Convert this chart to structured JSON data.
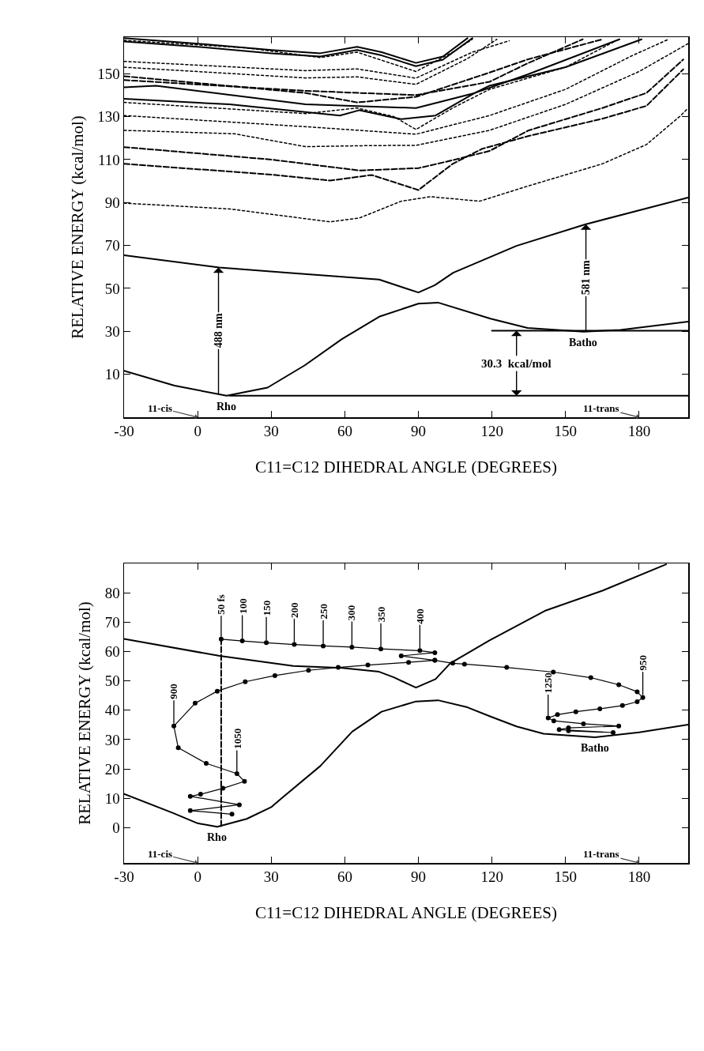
{
  "chart_data": [
    {
      "type": "line",
      "xlabel": "C11=C12 DIHEDRAL ANGLE (DEGREES)",
      "ylabel": "RELATIVE ENERGY (kcal/mol)",
      "xlim": [
        -30,
        200
      ],
      "ylim": [
        -10,
        167
      ],
      "xticks": [
        -30,
        0,
        30,
        60,
        90,
        120,
        150,
        180
      ],
      "yticks": [
        10,
        30,
        50,
        70,
        90,
        110,
        130,
        150
      ],
      "series": [
        {
          "x": [
            -30,
            -9.4,
            11.8,
            28.5,
            43.7,
            58.8,
            74,
            90,
            98,
            119.4,
            134.5,
            157.3,
            172.4,
            200
          ],
          "values": [
            11.6,
            4.7,
            0,
            3.8,
            14.2,
            26.4,
            36.8,
            42.9,
            43.4,
            35.9,
            31.6,
            29.8,
            30.7,
            34.5
          ],
          "color": "#000000",
          "line_style": "solid"
        },
        {
          "x": [
            -30,
            8.8,
            36,
            74,
            83,
            90,
            96.7,
            104.2,
            130,
            158,
            200
          ],
          "values": [
            65.4,
            59.7,
            57.3,
            54.1,
            50.7,
            48.1,
            51.5,
            57.3,
            69.8,
            79.8,
            92.3
          ],
          "color": "#000000",
          "line_style": "solid"
        },
        {
          "x": [
            -30,
            13,
            54,
            66,
            83,
            95,
            115,
            134.5,
            165,
            183,
            197,
            200
          ],
          "values": [
            89.7,
            87,
            81,
            82.8,
            90.6,
            92.7,
            90.6,
            97.6,
            108,
            117,
            130.5,
            134
          ],
          "color": "#000000",
          "line_style": "dotted"
        },
        {
          "x": [
            -30,
            30,
            66,
            90,
            104,
            119,
            135,
            165,
            183,
            198
          ],
          "values": [
            115.8,
            110,
            104.9,
            106,
            109.7,
            114,
            123.6,
            134,
            141,
            156.6
          ],
          "color": "#000000",
          "line_style": "dashed"
        },
        {
          "x": [
            -30,
            30,
            54,
            71,
            90,
            104,
            116,
            135,
            165,
            183,
            198
          ],
          "values": [
            108,
            103,
            100.2,
            102.8,
            95.8,
            108,
            115,
            121,
            129,
            135,
            152
          ],
          "color": "#000000",
          "line_style": "dashed"
        },
        {
          "x": [
            -30,
            15,
            44,
            70,
            89,
            119,
            150,
            180,
            200
          ],
          "values": [
            123.6,
            122,
            116,
            116.5,
            116.6,
            123.6,
            135.7,
            151,
            164
          ],
          "color": "#000000",
          "line_style": "dotted"
        },
        {
          "x": [
            -30,
            44,
            89,
            119,
            150,
            177,
            192
          ],
          "values": [
            130.5,
            125.3,
            121.8,
            130.5,
            142.7,
            158.3,
            166
          ],
          "color": "#000000",
          "line_style": "dotted"
        },
        {
          "x": [
            -30,
            44,
            65,
            80,
            89,
            104,
            119,
            150,
            170
          ],
          "values": [
            136.6,
            131.4,
            134,
            130,
            124,
            134,
            142.7,
            153,
            165
          ],
          "color": "#000000",
          "line_style": "dotted"
        },
        {
          "x": [
            -30,
            13,
            58,
            66,
            83,
            97,
            113,
            134.5,
            172
          ],
          "values": [
            138.3,
            135.7,
            130.5,
            133,
            128.8,
            130.5,
            141,
            149.6,
            166
          ],
          "color": "#000000",
          "line_style": "solid"
        },
        {
          "x": [
            -30,
            -17,
            44,
            89,
            113,
            119,
            150,
            181
          ],
          "values": [
            143.6,
            144.4,
            135.7,
            134,
            141,
            144.4,
            153,
            166
          ],
          "color": "#000000",
          "line_style": "solid"
        },
        {
          "x": [
            -30,
            44,
            65,
            89,
            119,
            134.5,
            165
          ],
          "values": [
            148.8,
            141,
            136.6,
            139.2,
            150.5,
            156.6,
            166
          ],
          "color": "#000000",
          "line_style": "dashed"
        },
        {
          "x": [
            -30,
            44,
            89,
            119,
            134.5,
            157
          ],
          "values": [
            147,
            142,
            140,
            146.2,
            154.8,
            166
          ],
          "color": "#000000",
          "line_style": "dashed"
        },
        {
          "x": [
            -30,
            44,
            65,
            89,
            112,
            127
          ],
          "values": [
            155.7,
            151.4,
            152.2,
            147.9,
            160,
            165.3
          ],
          "color": "#000000",
          "line_style": "dotted"
        },
        {
          "x": [
            -30,
            44,
            65,
            89,
            110,
            122
          ],
          "values": [
            153,
            148,
            148.5,
            145,
            157,
            166
          ],
          "color": "#000000",
          "line_style": "dotted"
        },
        {
          "x": [
            -30,
            20,
            50,
            65,
            89,
            104,
            112
          ],
          "values": [
            165.5,
            162,
            157.5,
            160,
            151,
            160,
            166
          ],
          "color": "#000000",
          "line_style": "dotted"
        },
        {
          "x": [
            -30,
            0,
            30,
            50,
            65,
            75,
            89,
            100,
            110
          ],
          "values": [
            166.5,
            164,
            161,
            159.5,
            162.5,
            160,
            155,
            158,
            166.5
          ],
          "color": "#000000",
          "line_style": "solid"
        },
        {
          "x": [
            -30,
            0,
            30,
            50,
            65,
            75,
            89,
            100,
            112
          ],
          "values": [
            165,
            162.5,
            159.5,
            158,
            161,
            158.5,
            153.5,
            156.5,
            166.5
          ],
          "color": "#000000",
          "line_style": "solid"
        },
        {
          "x": [
            13,
            200
          ],
          "values": [
            0,
            0
          ],
          "color": "#000000",
          "line_style": "solid"
        },
        {
          "x": [
            120,
            200
          ],
          "values": [
            30.3,
            30.3
          ],
          "color": "#000000",
          "line_style": "solid"
        }
      ],
      "annotations": [
        "11-cis",
        {
          "text": "Rho",
          "x": 11.8,
          "y": 0
        },
        {
          "text": "Batho",
          "x": 157.3,
          "y": 29.8
        },
        {
          "text": "30.3  kcal/mol",
          "x": 130,
          "y": 30.3
        },
        "11-trans",
        {
          "text": "488 nm",
          "x": 8.5,
          "y": 59.7
        },
        {
          "text": "581 nm",
          "x": 158.3,
          "y": 79.8
        }
      ]
    },
    {
      "type": "line",
      "xlabel": "C11=C12 DIHEDRAL ANGLE (DEGREES)",
      "ylabel": "RELATIVE ENERGY (kcal/mol)",
      "xlim": [
        -30,
        200
      ],
      "ylim": [
        -12,
        90
      ],
      "xticks": [
        -30,
        0,
        30,
        60,
        90,
        120,
        150,
        180
      ],
      "yticks": [
        0,
        10,
        20,
        30,
        40,
        50,
        60,
        70,
        80
      ],
      "series": [
        {
          "x": [
            -30,
            -10,
            0,
            8,
            20,
            30,
            34.6,
            50,
            63,
            75,
            89,
            98,
            110,
            119,
            130,
            141,
            162,
            180,
            200
          ],
          "values": [
            11.5,
            5,
            1.5,
            0.3,
            3,
            7,
            10.3,
            21,
            32.7,
            39.5,
            43,
            43.4,
            41,
            38,
            34.5,
            32,
            30.8,
            32.5,
            35.1
          ],
          "color": "#000000",
          "line_style": "solid"
        },
        {
          "x": [
            -30,
            9,
            39,
            59,
            74,
            80,
            89,
            97,
            103,
            119,
            142,
            165,
            191
          ],
          "values": [
            64.3,
            58.5,
            55.1,
            54.4,
            53.1,
            51.2,
            47.7,
            50.6,
            56,
            63.8,
            74,
            80.7,
            89.7
          ],
          "color": "#000000",
          "line_style": "solid"
        },
        {
          "x": [
            9.6,
            9.6
          ],
          "values": [
            0.5,
            64.2
          ],
          "color": "#000000",
          "line_style": "dashed"
        },
        {
          "x": [
            9.6,
            18.2,
            28,
            39.4,
            51.2,
            62.9,
            74.7,
            90.6,
            96.7,
            83,
            96.7,
            86,
            69.4,
            57.3,
            45.2,
            31.5,
            19.4,
            8,
            -1,
            -9.7,
            -7.9,
            3.5,
            16,
            19.1,
            10.3,
            1.2,
            -3,
            17,
            -3,
            14
          ],
          "values": [
            64.2,
            63.6,
            63,
            62.4,
            61.9,
            61.5,
            60.9,
            60.3,
            59.6,
            58.5,
            57,
            56.3,
            55.4,
            54.6,
            53.6,
            51.8,
            49.7,
            46.5,
            42.4,
            34.6,
            27.2,
            21.9,
            18.4,
            15.8,
            13.4,
            11.4,
            10.7,
            7.8,
            5.8,
            4.6
          ],
          "color": "#000000",
          "line_style": "solid",
          "marker": "circle"
        },
        {
          "x": [
            96.7,
            104,
            108.8,
            126,
            145,
            160.3,
            171.7,
            179.2,
            181.5,
            179.2,
            173.2,
            164,
            154.2,
            146.7,
            142.9,
            145.2,
            157.3,
            171.7,
            151.2,
            147.4,
            169.4,
            151.2
          ],
          "values": [
            57,
            56,
            55.7,
            54.6,
            53,
            51.1,
            48.7,
            46.3,
            44.3,
            42.9,
            41.6,
            40.5,
            39.5,
            38.5,
            37.4,
            36.4,
            35.4,
            34.6,
            34,
            33.4,
            32.4,
            33
          ],
          "color": "#000000",
          "line_style": "solid",
          "marker": "circle"
        }
      ],
      "annotations": [
        "11-cis",
        {
          "text": "Rho",
          "x": 8,
          "y": 0.3
        },
        {
          "text": "Batho",
          "x": 162,
          "y": 30.8
        },
        "11-trans",
        {
          "text": "50 fs",
          "x": 9.6,
          "y": 64.2
        },
        {
          "text": "100",
          "x": 18.2,
          "y": 63.6
        },
        {
          "text": "150",
          "x": 28,
          "y": 63
        },
        {
          "text": "200",
          "x": 39.4,
          "y": 62.4
        },
        {
          "text": "250",
          "x": 51.2,
          "y": 61.9
        },
        {
          "text": "300",
          "x": 62.9,
          "y": 61.5
        },
        {
          "text": "350",
          "x": 74.7,
          "y": 60.9
        },
        {
          "text": "400",
          "x": 90.6,
          "y": 60.3
        },
        {
          "text": "900",
          "x": -9.7,
          "y": 34.6
        },
        {
          "text": "1050",
          "x": 16,
          "y": 18.4
        },
        {
          "text": "950",
          "x": 181.5,
          "y": 44.3
        },
        {
          "text": "1250",
          "x": 142.9,
          "y": 37.4
        }
      ]
    }
  ]
}
